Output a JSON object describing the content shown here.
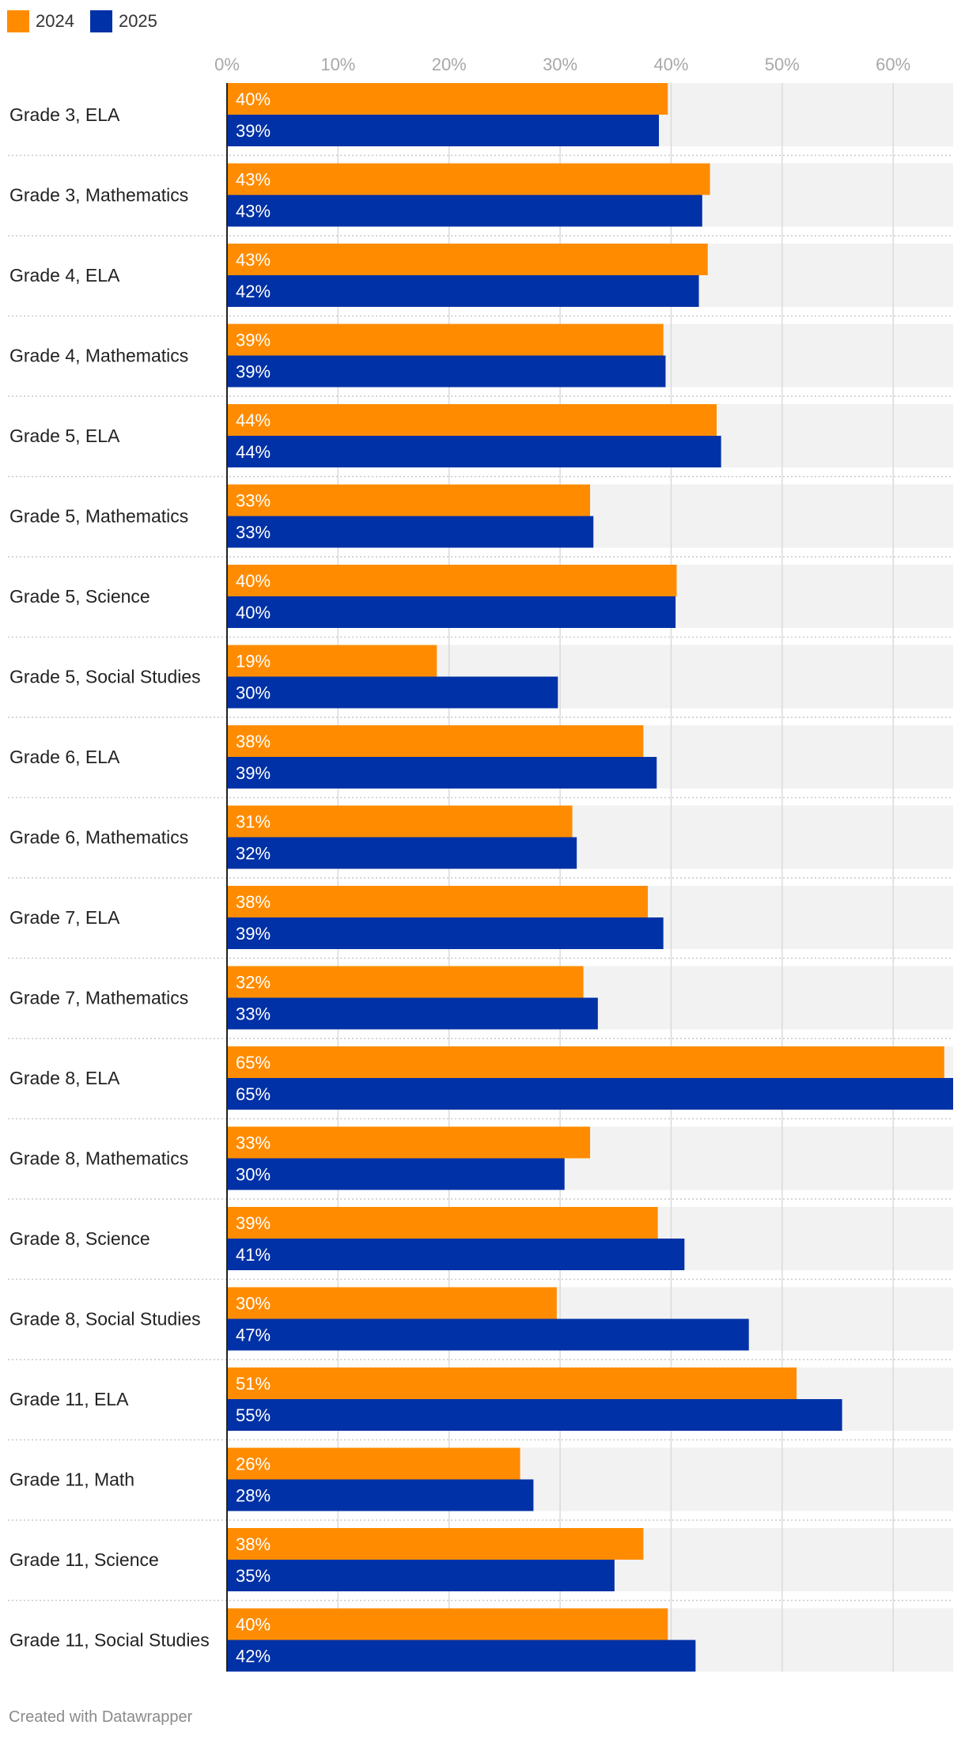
{
  "colors": {
    "series_2024": "#FF8C00",
    "series_2025": "#0031A6",
    "track": "#F2F2F2",
    "gridline": "#DADADA",
    "tick_text": "#A8A8A8",
    "row_text": "#222222",
    "separator": "#C9C9C9"
  },
  "legend": {
    "items": [
      {
        "label": "2024",
        "color": "#FF8C00"
      },
      {
        "label": "2025",
        "color": "#0031A6"
      }
    ]
  },
  "footer": {
    "credit": "Created with Datawrapper"
  },
  "chart_data": {
    "type": "bar",
    "orientation": "horizontal",
    "categories": [
      "Grade 3, ELA",
      "Grade 3, Mathematics",
      "Grade 4, ELA",
      "Grade 4, Mathematics",
      "Grade 5, ELA",
      "Grade 5, Mathematics",
      "Grade 5, Science",
      "Grade 5, Social Studies",
      "Grade 6, ELA",
      "Grade 6, Mathematics",
      "Grade 7, ELA",
      "Grade 7, Mathematics",
      "Grade 8, ELA",
      "Grade 8, Mathematics",
      "Grade 8, Science",
      "Grade 8, Social Studies",
      "Grade 11, ELA",
      "Grade 11, Math",
      "Grade 11, Science",
      "Grade 11, Social Studies"
    ],
    "series": [
      {
        "name": "2024",
        "values": [
          39.7,
          43.5,
          43.3,
          39.3,
          44.1,
          32.7,
          40.5,
          18.9,
          37.5,
          31.1,
          37.9,
          32.1,
          64.6,
          32.7,
          38.8,
          29.7,
          51.3,
          26.4,
          37.5,
          39.7
        ],
        "labels": [
          "40%",
          "43%",
          "43%",
          "39%",
          "44%",
          "33%",
          "40%",
          "19%",
          "38%",
          "31%",
          "38%",
          "32%",
          "65%",
          "33%",
          "39%",
          "30%",
          "51%",
          "26%",
          "38%",
          "40%"
        ]
      },
      {
        "name": "2025",
        "values": [
          38.9,
          42.8,
          42.5,
          39.5,
          44.5,
          33.0,
          40.4,
          29.8,
          38.7,
          31.5,
          39.3,
          33.4,
          65.4,
          30.4,
          41.2,
          47.0,
          55.4,
          27.6,
          34.9,
          42.2
        ],
        "labels": [
          "39%",
          "43%",
          "42%",
          "39%",
          "44%",
          "33%",
          "40%",
          "30%",
          "39%",
          "32%",
          "39%",
          "33%",
          "65%",
          "30%",
          "41%",
          "47%",
          "55%",
          "28%",
          "35%",
          "42%"
        ]
      }
    ],
    "xlim": [
      0,
      65.4
    ],
    "ticks": [
      0,
      10,
      20,
      30,
      40,
      50,
      60
    ],
    "tick_labels": [
      "0%",
      "10%",
      "20%",
      "30%",
      "40%",
      "50%",
      "60%"
    ],
    "title": "",
    "xlabel": "",
    "ylabel": "",
    "grid": true,
    "legend_position": "top-left"
  }
}
